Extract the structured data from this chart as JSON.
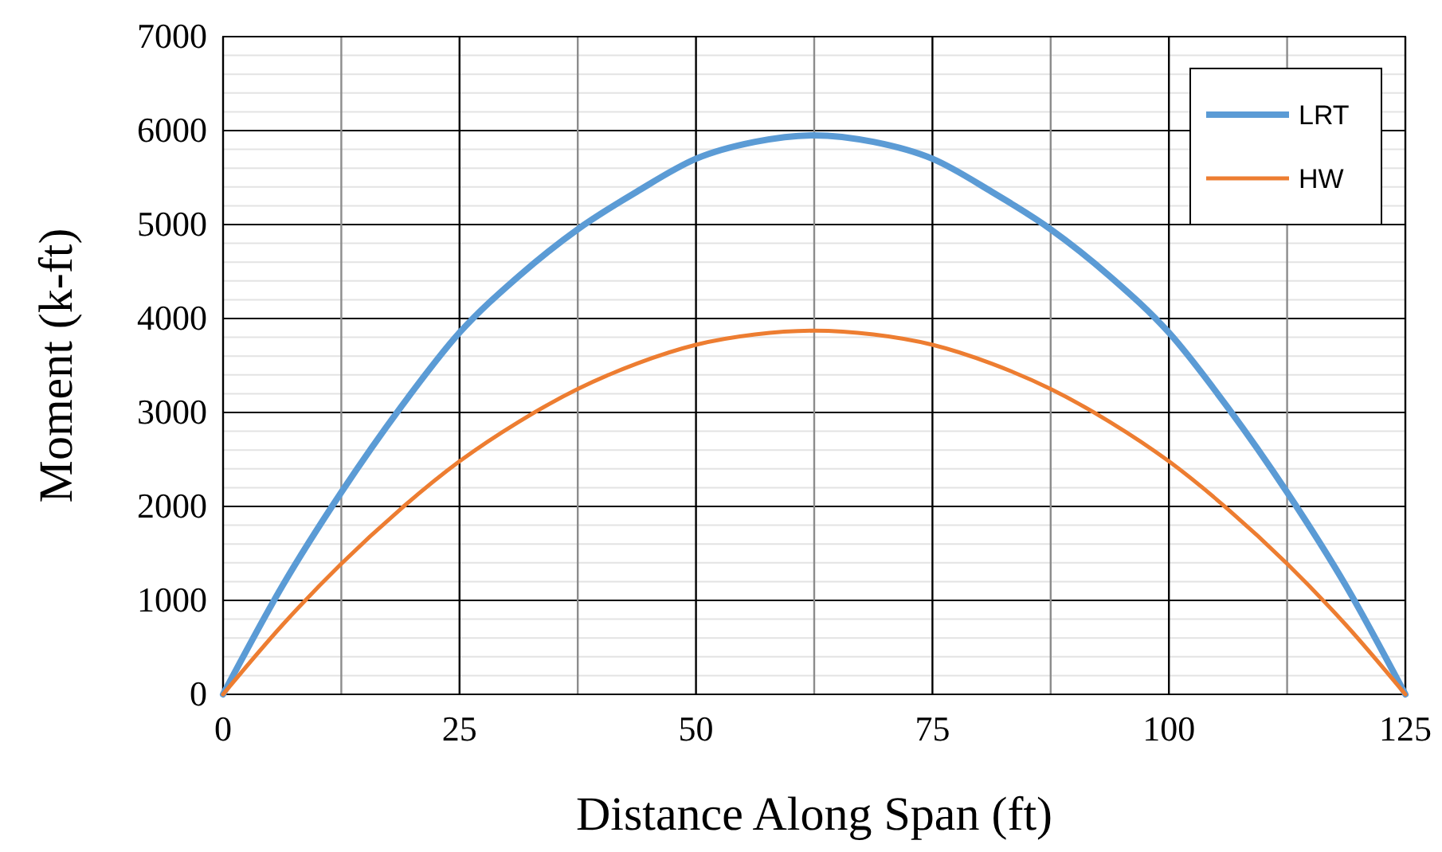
{
  "chart_data": {
    "type": "line",
    "xlabel": "Distance Along Span (ft)",
    "ylabel": "Moment (k-ft)",
    "xlim": [
      0,
      125
    ],
    "ylim": [
      0,
      7000
    ],
    "xticks": [
      0,
      {
        "value": 12.5,
        "label": null
      },
      25,
      {
        "value": 37.5,
        "label": null
      },
      50,
      {
        "value": 62.5,
        "label": null
      },
      75,
      {
        "value": 87.5,
        "label": null
      },
      100,
      {
        "value": 112.5,
        "label": null
      },
      125
    ],
    "yticks": [
      0,
      {
        "value": 200,
        "label": null
      },
      {
        "value": 400,
        "label": null
      },
      {
        "value": 600,
        "label": null
      },
      {
        "value": 800,
        "label": null
      },
      1000,
      {
        "value": 1200,
        "label": null
      },
      {
        "value": 1400,
        "label": null
      },
      {
        "value": 1600,
        "label": null
      },
      {
        "value": 1800,
        "label": null
      },
      2000,
      {
        "value": 2200,
        "label": null
      },
      {
        "value": 2400,
        "label": null
      },
      {
        "value": 2600,
        "label": null
      },
      {
        "value": 2800,
        "label": null
      },
      3000,
      {
        "value": 3200,
        "label": null
      },
      {
        "value": 3400,
        "label": null
      },
      {
        "value": 3600,
        "label": null
      },
      {
        "value": 3800,
        "label": null
      },
      4000,
      {
        "value": 4200,
        "label": null
      },
      {
        "value": 4400,
        "label": null
      },
      {
        "value": 4600,
        "label": null
      },
      {
        "value": 4800,
        "label": null
      },
      5000,
      {
        "value": 5200,
        "label": null
      },
      {
        "value": 5400,
        "label": null
      },
      {
        "value": 5600,
        "label": null
      },
      {
        "value": 5800,
        "label": null
      },
      6000,
      {
        "value": 6200,
        "label": null
      },
      {
        "value": 6400,
        "label": null
      },
      {
        "value": 6600,
        "label": null
      },
      {
        "value": 6800,
        "label": null
      },
      7000
    ],
    "grid": true,
    "legend": "top right",
    "marker": "none",
    "x": [
      0,
      6.25,
      12.5,
      18.75,
      25,
      31.25,
      37.5,
      43.75,
      50,
      56.25,
      62.5,
      68.75,
      75,
      81.25,
      87.5,
      93.75,
      100,
      106.25,
      112.5,
      118.75,
      125
    ],
    "series": [
      {
        "name": "LRT",
        "color": "#5b9bd5",
        "values": [
          0,
          1150,
          2150,
          3050,
          3850,
          4450,
          4950,
          5350,
          5700,
          5880,
          5950,
          5880,
          5700,
          5350,
          4950,
          4450,
          3850,
          3050,
          2150,
          1150,
          0
        ]
      },
      {
        "name": "HW",
        "color": "#ed7d31",
        "values": [
          0,
          735,
          1390,
          1970,
          2480,
          2900,
          3250,
          3520,
          3720,
          3830,
          3870,
          3830,
          3720,
          3520,
          3250,
          2900,
          2480,
          1970,
          1390,
          735,
          0
        ]
      }
    ]
  }
}
